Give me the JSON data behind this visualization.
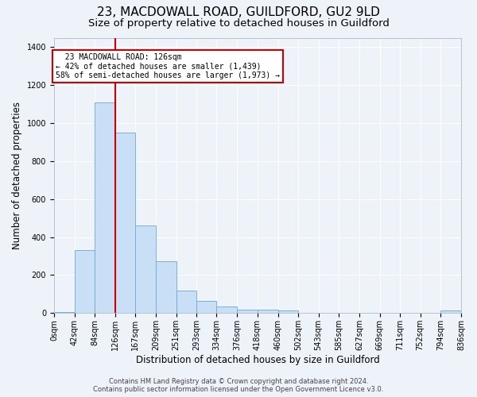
{
  "title": "23, MACDOWALL ROAD, GUILDFORD, GU2 9LD",
  "subtitle": "Size of property relative to detached houses in Guildford",
  "xlabel": "Distribution of detached houses by size in Guildford",
  "ylabel": "Number of detached properties",
  "bar_color": "#c9dff5",
  "bar_edge_color": "#6aaad4",
  "background_color": "#eef2f9",
  "property_line_x": 126,
  "annotation_text": "  23 MACDOWALL ROAD: 126sqm\n← 42% of detached houses are smaller (1,439)\n58% of semi-detached houses are larger (1,973) →",
  "annotation_box_color": "#ffffff",
  "annotation_box_edge": "#cc0000",
  "vline_color": "#cc0000",
  "bins": [
    0,
    42,
    84,
    126,
    167,
    209,
    251,
    293,
    334,
    376,
    418,
    460,
    502,
    543,
    585,
    627,
    669,
    711,
    752,
    794,
    836
  ],
  "counts": [
    5,
    330,
    1110,
    950,
    460,
    275,
    120,
    65,
    35,
    18,
    20,
    13,
    0,
    0,
    0,
    0,
    0,
    0,
    0,
    13
  ],
  "ylim": [
    0,
    1450
  ],
  "yticks": [
    0,
    200,
    400,
    600,
    800,
    1000,
    1200,
    1400
  ],
  "footer_line1": "Contains HM Land Registry data © Crown copyright and database right 2024.",
  "footer_line2": "Contains public sector information licensed under the Open Government Licence v3.0.",
  "grid_color": "#ffffff",
  "title_fontsize": 11,
  "subtitle_fontsize": 9.5,
  "tick_fontsize": 7,
  "label_fontsize": 8.5,
  "footer_fontsize": 6
}
